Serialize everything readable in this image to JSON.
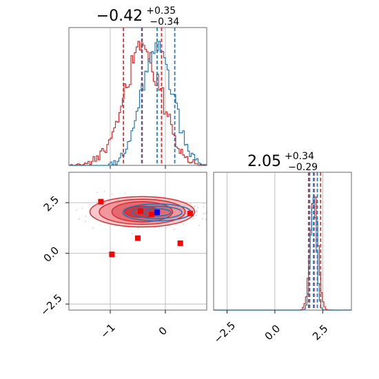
{
  "chart_data": [
    {
      "type": "histogram",
      "panel": "marginal-x",
      "title_value": "−0.42",
      "title_plus": "+0.35",
      "title_minus": "−0.34",
      "xlim": [
        -1.75,
        0.75
      ],
      "center": -0.35,
      "colors": {
        "red": "#d62728",
        "blue": "#1f77b4"
      },
      "series": [
        {
          "name": "",
          "color": "red",
          "mean": -0.42,
          "sigma": 0.34,
          "quantiles": [
            -0.76,
            -0.42,
            -0.07
          ]
        },
        {
          "name": "",
          "color": "blue",
          "mean": -0.15,
          "sigma": 0.28,
          "quantiles": [
            -0.43,
            -0.15,
            0.17
          ]
        }
      ]
    },
    {
      "type": "histogram",
      "panel": "marginal-y",
      "title_value": "2.05",
      "title_plus": "+0.34",
      "title_minus": "−0.29",
      "xlim": [
        -3.2,
        4.0
      ],
      "xticks": [
        "−2.5",
        "0.0",
        "2.5"
      ],
      "xtick_values": [
        -2.5,
        0.0,
        2.5
      ],
      "series": [
        {
          "name": "",
          "color": "red",
          "mean": 2.05,
          "sigma": 0.2,
          "quantiles": [
            1.76,
            2.05,
            2.39
          ]
        },
        {
          "name": "",
          "color": "blue",
          "mean": 2.02,
          "sigma": 0.15,
          "quantiles": [
            1.82,
            2.02,
            2.22
          ]
        }
      ]
    },
    {
      "type": "contour",
      "panel": "joint",
      "xlim": [
        -1.75,
        0.75
      ],
      "ylim": [
        -2.8,
        4.0
      ],
      "xticks": [
        "−1",
        "0"
      ],
      "xtick_values": [
        -1,
        0
      ],
      "yticks": [
        "−2.5",
        "0.0",
        "2.5"
      ],
      "ytick_values": [
        -2.5,
        0.0,
        2.5
      ],
      "red_contour": {
        "cx": -0.42,
        "cy": 2.05,
        "levels": [
          {
            "rx": 0.32,
            "ry": 0.28
          },
          {
            "rx": 0.55,
            "ry": 0.5
          },
          {
            "rx": 0.78,
            "ry": 0.62
          },
          {
            "rx": 0.95,
            "ry": 0.75
          }
        ]
      },
      "blue_contour": {
        "cx": -0.15,
        "cy": 2.02,
        "levels": [
          {
            "rx": 0.25,
            "ry": 0.18
          },
          {
            "rx": 0.45,
            "ry": 0.3
          },
          {
            "rx": 0.62,
            "ry": 0.42
          }
        ]
      },
      "red_markers": [
        {
          "x": -1.17,
          "y": 2.55
        },
        {
          "x": -0.45,
          "y": 2.08
        },
        {
          "x": -0.25,
          "y": 1.92
        },
        {
          "x": 0.45,
          "y": 1.97
        },
        {
          "x": -0.5,
          "y": 0.75
        },
        {
          "x": -0.97,
          "y": -0.05
        },
        {
          "x": 0.27,
          "y": 0.5
        }
      ],
      "blue_markers": [
        {
          "x": -0.15,
          "y": 2.02
        }
      ]
    }
  ]
}
